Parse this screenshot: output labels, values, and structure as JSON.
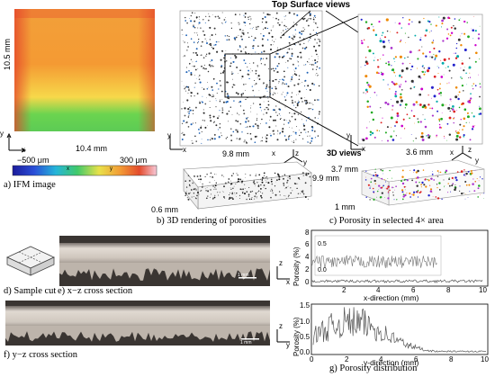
{
  "panels": {
    "a": {
      "caption": "a) IFM image",
      "height_label": "10.5 mm",
      "width_label": "10.4 mm",
      "axis_x": "x",
      "axis_y": "y",
      "colorbar": {
        "min_label": "−500 μm",
        "max_label": "300 μm",
        "tick_a": "x",
        "tick_b": "y"
      }
    },
    "b": {
      "caption": "b) 3D rendering of porosities",
      "width_label": "9.8 mm",
      "right_label": "9.9 mm",
      "depth_label": "0.6 mm",
      "axis_x": "x",
      "axis_y": "y",
      "axis_z": "z"
    },
    "c": {
      "caption": "c) Porosity in selected 4× area",
      "top_views_label": "Top Surface views",
      "views_3d_label": "3D views",
      "width_label": "3.6 mm",
      "height_label": "3.7 mm",
      "depth_label": "1 mm",
      "axis_x": "x",
      "axis_y": "y",
      "axis_z": "z"
    },
    "d": {
      "caption": "d) Sample cut"
    },
    "e": {
      "caption": "e) x−z cross section",
      "scale_label": "1 mm",
      "axis_x": "x",
      "axis_z": "z"
    },
    "f": {
      "caption": "f) y−z cross section",
      "scale_label": "1 mm",
      "axis_y": "y",
      "axis_z": "z"
    },
    "g": {
      "caption": "g) Porosity distribution",
      "plot1": {
        "ylabel": "Porosity (%)",
        "xlabel": "x-direction (mm)",
        "yticks": [
          "0",
          "2",
          "4",
          "6",
          "8"
        ],
        "xticks": [
          "2",
          "4",
          "6",
          "8",
          "10"
        ],
        "inset_ticks": [
          "0.5",
          "0.0"
        ],
        "ylim": [
          0,
          8
        ],
        "xlim": [
          0,
          10
        ]
      },
      "plot2": {
        "ylabel": "Porosity (%)",
        "xlabel": "y-direction (mm)",
        "yticks": [
          "0.0",
          "0.5",
          "1.0",
          "1.5"
        ],
        "xticks": [
          "0",
          "2",
          "4",
          "6",
          "8",
          "10"
        ],
        "ylim": [
          0,
          1.5
        ],
        "xlim": [
          0,
          10
        ]
      }
    }
  },
  "colors": {
    "trace": "#555555",
    "heat_hot": "#e8412a",
    "heat_warm": "#f59a2f",
    "heat_cool": "#58c94a"
  }
}
